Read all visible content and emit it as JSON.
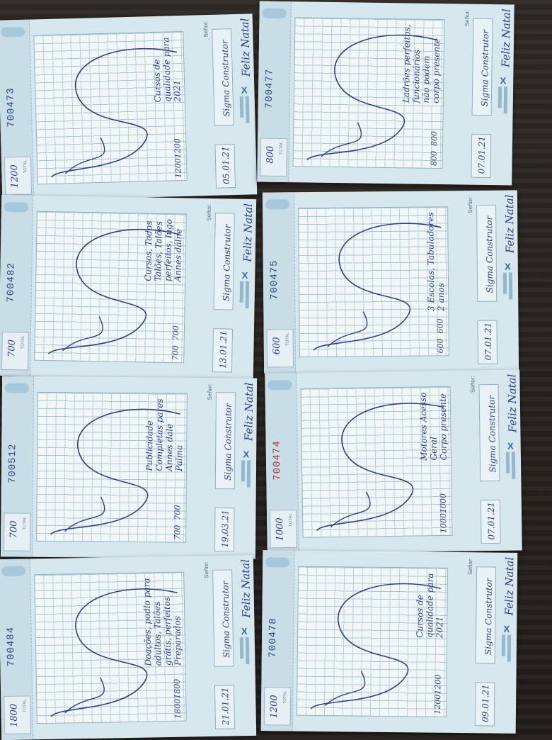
{
  "receipts": [
    {
      "serial": "700473",
      "serial_red": false,
      "greeting": "Feliz Natal",
      "name": "Sigma\nConstrutor",
      "desc": "Cursos de\nqualidade para\n2021",
      "price": "1200",
      "amount": "1200",
      "date": "05.01.21",
      "total": "1200"
    },
    {
      "serial": "700477",
      "serial_red": false,
      "greeting": "Feliz Natal",
      "name": "Sigma\nConstrutor",
      "desc": "Ladrões perfeitos,\nfuncionários\nnão podem\ncorpo presente",
      "price": "800",
      "amount": "800",
      "date": "07.01.21",
      "total": "800"
    },
    {
      "serial": "700482",
      "serial_red": false,
      "greeting": "Feliz Natal",
      "name": "Sigma\nConstrutor",
      "desc": "Cursos, Todos\nTalões, Talões\nperfeitos, lugo\nAnnes dálne",
      "price": "700",
      "amount": "700",
      "date": "13.01.21",
      "total": "700"
    },
    {
      "serial": "700475",
      "serial_red": false,
      "greeting": "Feliz Natal",
      "name": "Sigma\nConstrutor",
      "desc": "3 Escolas, Tabuladores\n2 anos",
      "price": "600",
      "amount": "600",
      "date": "07.01.21",
      "total": "600"
    },
    {
      "serial": "700512",
      "serial_red": false,
      "greeting": "Feliz Natal",
      "name": "Sigma\nConstrutor",
      "desc": "Publicidade\nCompletas pares\nAnnes dale\nPalma",
      "price": "700",
      "amount": "700",
      "date": "19.03.21",
      "total": "700"
    },
    {
      "serial": "700474",
      "serial_red": true,
      "greeting": "Feliz Natal",
      "name": "Sigma\nConstrutor",
      "desc": "Motores Acesso\nGeral\nCorpo presente",
      "price": "1000",
      "amount": "1000",
      "date": "07.01.21",
      "total": "1000"
    },
    {
      "serial": "700484",
      "serial_red": false,
      "greeting": "Feliz Natal",
      "name": "Sigma\nConstrutor",
      "desc": "Doações, podlo para\nadultos, Talões\ngrátis, perfeitos\nPreparados",
      "price": "1800",
      "amount": "1800",
      "date": "21.01.21",
      "total": "1800"
    },
    {
      "serial": "700478",
      "serial_red": false,
      "greeting": "Feliz Natal",
      "name": "Sigma\nConstrutor",
      "desc": "Cursos de\nqualidade para\n2021",
      "price": "1200",
      "amount": "1200",
      "date": "09.01.21",
      "total": "1200"
    }
  ],
  "labels": {
    "senor": "Señor:",
    "total": "TOTAL"
  }
}
